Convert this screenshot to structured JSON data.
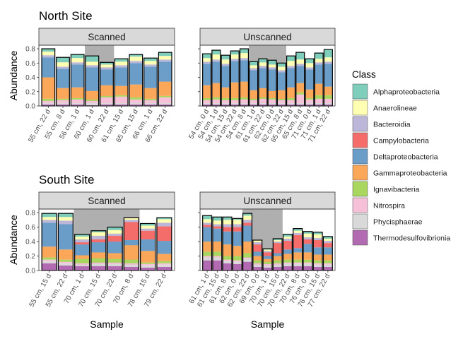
{
  "legend": {
    "title": "Class",
    "classes": [
      {
        "name": "Alphaproteobacteria",
        "color": "#7fcdbb"
      },
      {
        "name": "Anaerolineae",
        "color": "#ffffb3"
      },
      {
        "name": "Bacteroidia",
        "color": "#bcb6d8"
      },
      {
        "name": "Campylobacteria",
        "color": "#f46d6a"
      },
      {
        "name": "Deltaproteobacteria",
        "color": "#6b9dc9"
      },
      {
        "name": "Gammaproteobacteria",
        "color": "#fba75a"
      },
      {
        "name": "Ignavibacteria",
        "color": "#a9d65e"
      },
      {
        "name": "Nitrospira",
        "color": "#f7c0d9"
      },
      {
        "name": "Phycisphaerae",
        "color": "#d9d9d9"
      },
      {
        "name": "Thermodesulfovibrionia",
        "color": "#b26bb0"
      }
    ]
  },
  "chart_data": [
    {
      "type": "bar",
      "title": "North Site",
      "facet": "Scanned",
      "ylabel": "Abundance",
      "xlabel": "",
      "ylim": [
        0,
        0.85
      ],
      "yticks": [
        "0.0",
        "0.2",
        "0.4",
        "0.6",
        "0.8"
      ],
      "shaded_range": [
        "60 cm, 1 d",
        "60 cm, 22 d"
      ],
      "categories": [
        "55 cm, 22 d",
        "55 cm, 8 d",
        "56 cm, 1 d",
        "60 cm, 1 d",
        "60 cm, 22 d",
        "61 cm, 15 d",
        "65 cm, 15 d",
        "66 cm, 1 d",
        "66 cm, 22 d"
      ],
      "series": [
        {
          "name": "Thermodesulfovibrionia",
          "values": [
            0.02,
            0.02,
            0.02,
            0.01,
            0.02,
            0.02,
            0.02,
            0.02,
            0.02
          ]
        },
        {
          "name": "Phycisphaerae",
          "values": [
            0.02,
            0.02,
            0.02,
            0.03,
            0.02,
            0.02,
            0.02,
            0.02,
            0.02
          ]
        },
        {
          "name": "Nitrospira",
          "values": [
            0.03,
            0.04,
            0.05,
            0.03,
            0.08,
            0.09,
            0.05,
            0.04,
            0.08
          ]
        },
        {
          "name": "Ignavibacteria",
          "values": [
            0.03,
            0.02,
            0.02,
            0.02,
            0.02,
            0.02,
            0.03,
            0.02,
            0.02
          ]
        },
        {
          "name": "Gammaproteobacteria",
          "values": [
            0.3,
            0.15,
            0.15,
            0.12,
            0.15,
            0.13,
            0.18,
            0.15,
            0.2
          ]
        },
        {
          "name": "Deltaproteobacteria",
          "values": [
            0.28,
            0.27,
            0.32,
            0.33,
            0.22,
            0.26,
            0.3,
            0.3,
            0.28
          ]
        },
        {
          "name": "Campylobacteria",
          "values": [
            0.0,
            0.0,
            0.0,
            0.0,
            0.0,
            0.0,
            0.0,
            0.0,
            0.0
          ]
        },
        {
          "name": "Bacteroidia",
          "values": [
            0.03,
            0.03,
            0.03,
            0.03,
            0.03,
            0.03,
            0.03,
            0.03,
            0.03
          ]
        },
        {
          "name": "Anaerolineae",
          "values": [
            0.05,
            0.06,
            0.06,
            0.05,
            0.04,
            0.05,
            0.06,
            0.05,
            0.05
          ]
        },
        {
          "name": "Alphaproteobacteria",
          "values": [
            0.04,
            0.07,
            0.05,
            0.08,
            0.03,
            0.04,
            0.03,
            0.04,
            0.05
          ]
        }
      ]
    },
    {
      "type": "bar",
      "title": "",
      "facet": "Unscanned",
      "ylabel": "",
      "xlabel": "",
      "ylim": [
        0,
        0.85
      ],
      "yticks": [],
      "shaded_range": [
        "61 cm, 1 d",
        "62 cm, 22 d"
      ],
      "categories": [
        "54 cm, 0 d",
        "54 cm, 1 d",
        "54 cm, 15 d",
        "54 cm, 22 d",
        "54 cm, 8 d",
        "61 cm, 1 d",
        "61 cm, 22 d",
        "62 cm, 0 d",
        "62 cm, 22 d",
        "65 cm, 15 d",
        "65 cm, 8 d",
        "71 cm, 0 d",
        "71 cm, 1 d",
        "71 cm, 22 d"
      ],
      "series": [
        {
          "name": "Thermodesulfovibrionia",
          "values": [
            0.02,
            0.02,
            0.02,
            0.02,
            0.02,
            0.02,
            0.02,
            0.02,
            0.02,
            0.02,
            0.02,
            0.02,
            0.02,
            0.02
          ]
        },
        {
          "name": "Phycisphaerae",
          "values": [
            0.02,
            0.02,
            0.02,
            0.02,
            0.02,
            0.02,
            0.02,
            0.02,
            0.02,
            0.02,
            0.02,
            0.02,
            0.02,
            0.02
          ]
        },
        {
          "name": "Nitrospira",
          "values": [
            0.04,
            0.05,
            0.04,
            0.04,
            0.05,
            0.04,
            0.06,
            0.05,
            0.04,
            0.04,
            0.12,
            0.05,
            0.06,
            0.06
          ]
        },
        {
          "name": "Ignavibacteria",
          "values": [
            0.03,
            0.03,
            0.03,
            0.03,
            0.03,
            0.02,
            0.02,
            0.02,
            0.02,
            0.03,
            0.03,
            0.02,
            0.05,
            0.05
          ]
        },
        {
          "name": "Gammaproteobacteria",
          "values": [
            0.18,
            0.2,
            0.15,
            0.22,
            0.22,
            0.12,
            0.13,
            0.1,
            0.12,
            0.15,
            0.13,
            0.12,
            0.16,
            0.12
          ]
        },
        {
          "name": "Deltaproteobacteria",
          "values": [
            0.3,
            0.3,
            0.3,
            0.3,
            0.3,
            0.28,
            0.28,
            0.3,
            0.25,
            0.27,
            0.24,
            0.28,
            0.27,
            0.32
          ]
        },
        {
          "name": "Campylobacteria",
          "values": [
            0.0,
            0.0,
            0.0,
            0.0,
            0.0,
            0.0,
            0.0,
            0.0,
            0.0,
            0.0,
            0.0,
            0.0,
            0.0,
            0.0
          ]
        },
        {
          "name": "Bacteroidia",
          "values": [
            0.03,
            0.03,
            0.03,
            0.03,
            0.03,
            0.03,
            0.03,
            0.03,
            0.03,
            0.03,
            0.03,
            0.03,
            0.03,
            0.03
          ]
        },
        {
          "name": "Anaerolineae",
          "values": [
            0.05,
            0.07,
            0.06,
            0.06,
            0.07,
            0.04,
            0.05,
            0.04,
            0.05,
            0.07,
            0.06,
            0.06,
            0.05,
            0.06
          ]
        },
        {
          "name": "Alphaproteobacteria",
          "values": [
            0.06,
            0.06,
            0.06,
            0.05,
            0.06,
            0.05,
            0.05,
            0.06,
            0.05,
            0.07,
            0.1,
            0.06,
            0.08,
            0.11
          ]
        }
      ]
    },
    {
      "type": "bar",
      "title": "South Site",
      "facet": "Scanned",
      "ylabel": "Abundance",
      "xlabel": "Sample",
      "ylim": [
        0,
        0.85
      ],
      "yticks": [
        "0.0",
        "0.2",
        "0.4",
        "0.6",
        "0.8"
      ],
      "shaded_range": [
        "70 cm, 1 d",
        "70 cm, 8 d"
      ],
      "categories": [
        "55 cm, 15 d",
        "55 cm, 22 d",
        "70 cm, 1 d",
        "70 cm, 15 d",
        "70 cm, 22 d",
        "70 cm, 8 d",
        "78 cm, 15 d",
        "79 cm, 22 d"
      ],
      "series": [
        {
          "name": "Thermodesulfovibrionia",
          "values": [
            0.1,
            0.07,
            0.06,
            0.06,
            0.06,
            0.05,
            0.04,
            0.05
          ]
        },
        {
          "name": "Phycisphaerae",
          "values": [
            0.03,
            0.03,
            0.02,
            0.03,
            0.03,
            0.03,
            0.03,
            0.03
          ]
        },
        {
          "name": "Nitrospira",
          "values": [
            0.02,
            0.02,
            0.02,
            0.02,
            0.02,
            0.02,
            0.02,
            0.02
          ]
        },
        {
          "name": "Ignavibacteria",
          "values": [
            0.03,
            0.03,
            0.06,
            0.06,
            0.05,
            0.05,
            0.02,
            0.03
          ]
        },
        {
          "name": "Gammaproteobacteria",
          "values": [
            0.15,
            0.14,
            0.05,
            0.08,
            0.08,
            0.2,
            0.16,
            0.1
          ]
        },
        {
          "name": "Deltaproteobacteria",
          "values": [
            0.33,
            0.35,
            0.15,
            0.14,
            0.16,
            0.07,
            0.16,
            0.18
          ]
        },
        {
          "name": "Campylobacteria",
          "values": [
            0.0,
            0.0,
            0.03,
            0.04,
            0.08,
            0.25,
            0.12,
            0.2
          ]
        },
        {
          "name": "Bacteroidia",
          "values": [
            0.04,
            0.05,
            0.04,
            0.05,
            0.03,
            0.03,
            0.03,
            0.05
          ]
        },
        {
          "name": "Anaerolineae",
          "values": [
            0.04,
            0.05,
            0.04,
            0.05,
            0.05,
            0.03,
            0.04,
            0.05
          ]
        },
        {
          "name": "Alphaproteobacteria",
          "values": [
            0.05,
            0.05,
            0.03,
            0.02,
            0.04,
            0.0,
            0.03,
            0.02
          ]
        }
      ]
    },
    {
      "type": "bar",
      "title": "",
      "facet": "Unscanned",
      "ylabel": "",
      "xlabel": "Sample",
      "ylim": [
        0,
        0.85
      ],
      "yticks": [],
      "shaded_range": [
        "62 cm, 22 d",
        "70 cm, 15 d"
      ],
      "categories": [
        "61 cm, 1 d",
        "61 cm, 15 d",
        "61 cm, 8 d",
        "62 cm, 0 d",
        "62 cm, 22 d",
        "69 cm, 0 d",
        "70 cm, 1 d",
        "70 cm, 15 d",
        "70 cm, 22 d",
        "70 cm, 8 d",
        "76 cm, 0 d",
        "76 cm, 15 d",
        "77 cm, 22 d"
      ],
      "series": [
        {
          "name": "Thermodesulfovibrionia",
          "values": [
            0.14,
            0.14,
            0.1,
            0.09,
            0.12,
            0.05,
            0.04,
            0.05,
            0.06,
            0.06,
            0.06,
            0.05,
            0.05
          ]
        },
        {
          "name": "Phycisphaerae",
          "values": [
            0.04,
            0.04,
            0.03,
            0.03,
            0.04,
            0.03,
            0.03,
            0.03,
            0.03,
            0.03,
            0.03,
            0.03,
            0.03
          ]
        },
        {
          "name": "Nitrospira",
          "values": [
            0.02,
            0.02,
            0.02,
            0.02,
            0.02,
            0.02,
            0.02,
            0.02,
            0.02,
            0.02,
            0.02,
            0.02,
            0.02
          ]
        },
        {
          "name": "Ignavibacteria",
          "values": [
            0.06,
            0.06,
            0.05,
            0.06,
            0.06,
            0.04,
            0.03,
            0.04,
            0.04,
            0.04,
            0.04,
            0.04,
            0.04
          ]
        },
        {
          "name": "Gammaproteobacteria",
          "values": [
            0.14,
            0.14,
            0.16,
            0.14,
            0.16,
            0.06,
            0.04,
            0.06,
            0.08,
            0.1,
            0.1,
            0.08,
            0.08
          ]
        },
        {
          "name": "Deltaproteobacteria",
          "values": [
            0.2,
            0.18,
            0.18,
            0.2,
            0.22,
            0.06,
            0.04,
            0.04,
            0.06,
            0.06,
            0.12,
            0.1,
            0.1
          ]
        },
        {
          "name": "Campylobacteria",
          "values": [
            0.03,
            0.03,
            0.06,
            0.06,
            0.04,
            0.1,
            0.05,
            0.14,
            0.12,
            0.18,
            0.06,
            0.1,
            0.06
          ]
        },
        {
          "name": "Bacteroidia",
          "values": [
            0.03,
            0.03,
            0.04,
            0.04,
            0.04,
            0.03,
            0.02,
            0.02,
            0.03,
            0.03,
            0.03,
            0.03,
            0.03
          ]
        },
        {
          "name": "Anaerolineae",
          "values": [
            0.05,
            0.05,
            0.06,
            0.06,
            0.06,
            0.03,
            0.02,
            0.02,
            0.03,
            0.03,
            0.05,
            0.05,
            0.03
          ]
        },
        {
          "name": "Alphaproteobacteria",
          "values": [
            0.05,
            0.05,
            0.04,
            0.02,
            0.03,
            0.0,
            0.01,
            0.02,
            0.03,
            0.03,
            0.03,
            0.03,
            0.03
          ]
        }
      ]
    }
  ]
}
